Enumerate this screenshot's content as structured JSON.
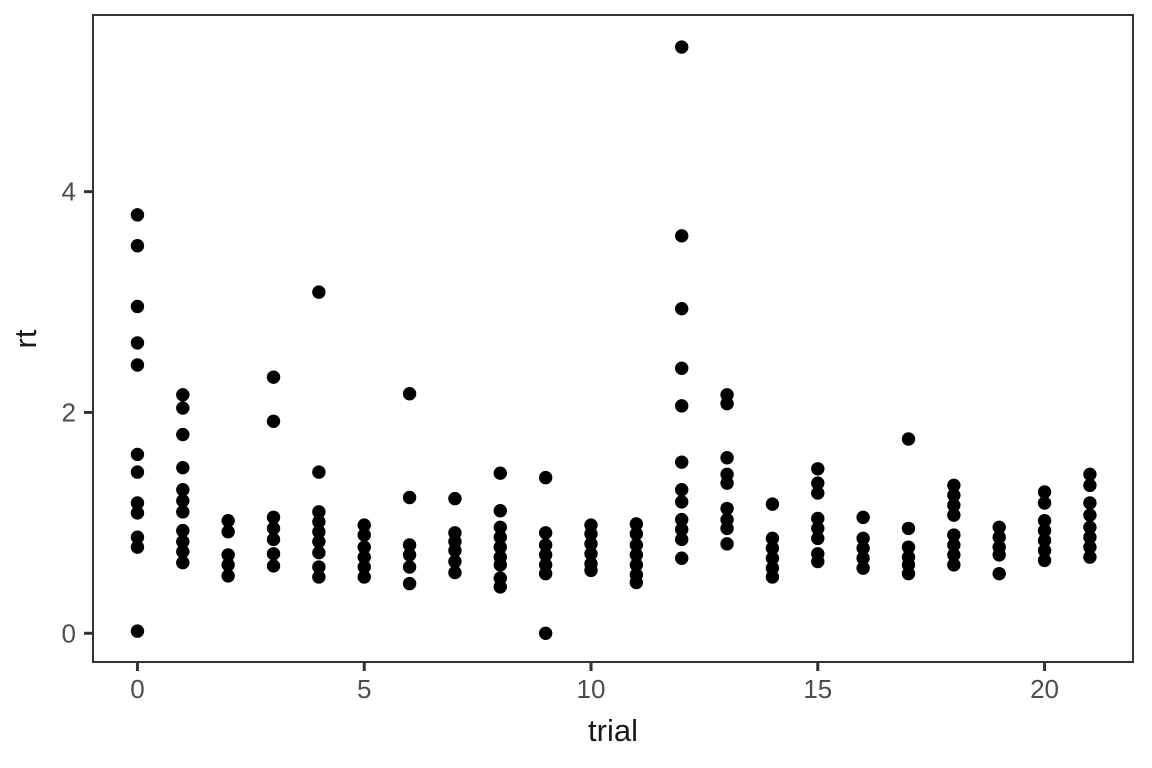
{
  "chart_data": {
    "type": "scatter",
    "title": "",
    "xlabel": "trial",
    "ylabel": "rt",
    "x_ticks": [
      0,
      5,
      10,
      15,
      20
    ],
    "y_ticks": [
      0,
      2,
      4
    ],
    "xlim": [
      -0.98,
      21.95
    ],
    "ylim": [
      -0.26,
      5.6
    ],
    "grid": false,
    "legend": "none",
    "point_color": "#000000",
    "point_radius": 6.7,
    "panel_border_color": "#333333",
    "tick_color": "#333333",
    "tick_label_color": "#4d4d4d",
    "background_color": "#ffffff",
    "points": [
      {
        "trial": 0,
        "rt": [
          3.79,
          3.51,
          2.96,
          2.63,
          2.43,
          1.62,
          1.46,
          1.18,
          1.09,
          0.87,
          0.78,
          0.02
        ]
      },
      {
        "trial": 1,
        "rt": [
          2.16,
          2.04,
          1.8,
          1.5,
          1.3,
          1.2,
          1.1,
          0.93,
          0.83,
          0.74,
          0.64
        ]
      },
      {
        "trial": 2,
        "rt": [
          1.02,
          0.92,
          0.71,
          0.62,
          0.52
        ]
      },
      {
        "trial": 3,
        "rt": [
          2.32,
          1.92,
          1.05,
          0.95,
          0.85,
          0.72,
          0.61
        ]
      },
      {
        "trial": 4,
        "rt": [
          3.09,
          1.46,
          1.1,
          1.01,
          0.92,
          0.83,
          0.73,
          0.6,
          0.51
        ]
      },
      {
        "trial": 5,
        "rt": [
          0.98,
          0.89,
          0.78,
          0.69,
          0.6,
          0.51
        ]
      },
      {
        "trial": 6,
        "rt": [
          2.17,
          1.23,
          0.8,
          0.71,
          0.6,
          0.45
        ]
      },
      {
        "trial": 7,
        "rt": [
          1.22,
          0.91,
          0.83,
          0.75,
          0.65,
          0.55
        ]
      },
      {
        "trial": 8,
        "rt": [
          1.45,
          1.11,
          0.96,
          0.87,
          0.78,
          0.69,
          0.62,
          0.5,
          0.42
        ]
      },
      {
        "trial": 9,
        "rt": [
          1.41,
          0.91,
          0.8,
          0.71,
          0.62,
          0.54,
          0.0
        ]
      },
      {
        "trial": 10,
        "rt": [
          0.98,
          0.9,
          0.81,
          0.72,
          0.63,
          0.57
        ]
      },
      {
        "trial": 11,
        "rt": [
          0.99,
          0.9,
          0.8,
          0.71,
          0.62,
          0.53,
          0.46
        ]
      },
      {
        "trial": 12,
        "rt": [
          5.31,
          3.6,
          2.94,
          2.4,
          2.06,
          1.55,
          1.3,
          1.19,
          1.03,
          0.94,
          0.85,
          0.68
        ]
      },
      {
        "trial": 13,
        "rt": [
          2.16,
          2.08,
          1.59,
          1.44,
          1.36,
          1.13,
          1.03,
          0.95,
          0.81
        ]
      },
      {
        "trial": 14,
        "rt": [
          1.17,
          0.86,
          0.77,
          0.68,
          0.59,
          0.51
        ]
      },
      {
        "trial": 15,
        "rt": [
          1.49,
          1.36,
          1.27,
          1.04,
          0.95,
          0.86,
          0.72,
          0.65
        ]
      },
      {
        "trial": 16,
        "rt": [
          1.05,
          0.86,
          0.77,
          0.68,
          0.59
        ]
      },
      {
        "trial": 17,
        "rt": [
          1.76,
          0.95,
          0.78,
          0.69,
          0.62,
          0.54
        ]
      },
      {
        "trial": 18,
        "rt": [
          1.34,
          1.25,
          1.16,
          1.07,
          0.89,
          0.8,
          0.71,
          0.62
        ]
      },
      {
        "trial": 19,
        "rt": [
          0.96,
          0.87,
          0.78,
          0.71,
          0.54
        ]
      },
      {
        "trial": 20,
        "rt": [
          1.28,
          1.18,
          1.02,
          0.93,
          0.84,
          0.75,
          0.66
        ]
      },
      {
        "trial": 21,
        "rt": [
          1.44,
          1.34,
          1.18,
          1.07,
          0.96,
          0.87,
          0.78,
          0.69
        ]
      }
    ]
  }
}
